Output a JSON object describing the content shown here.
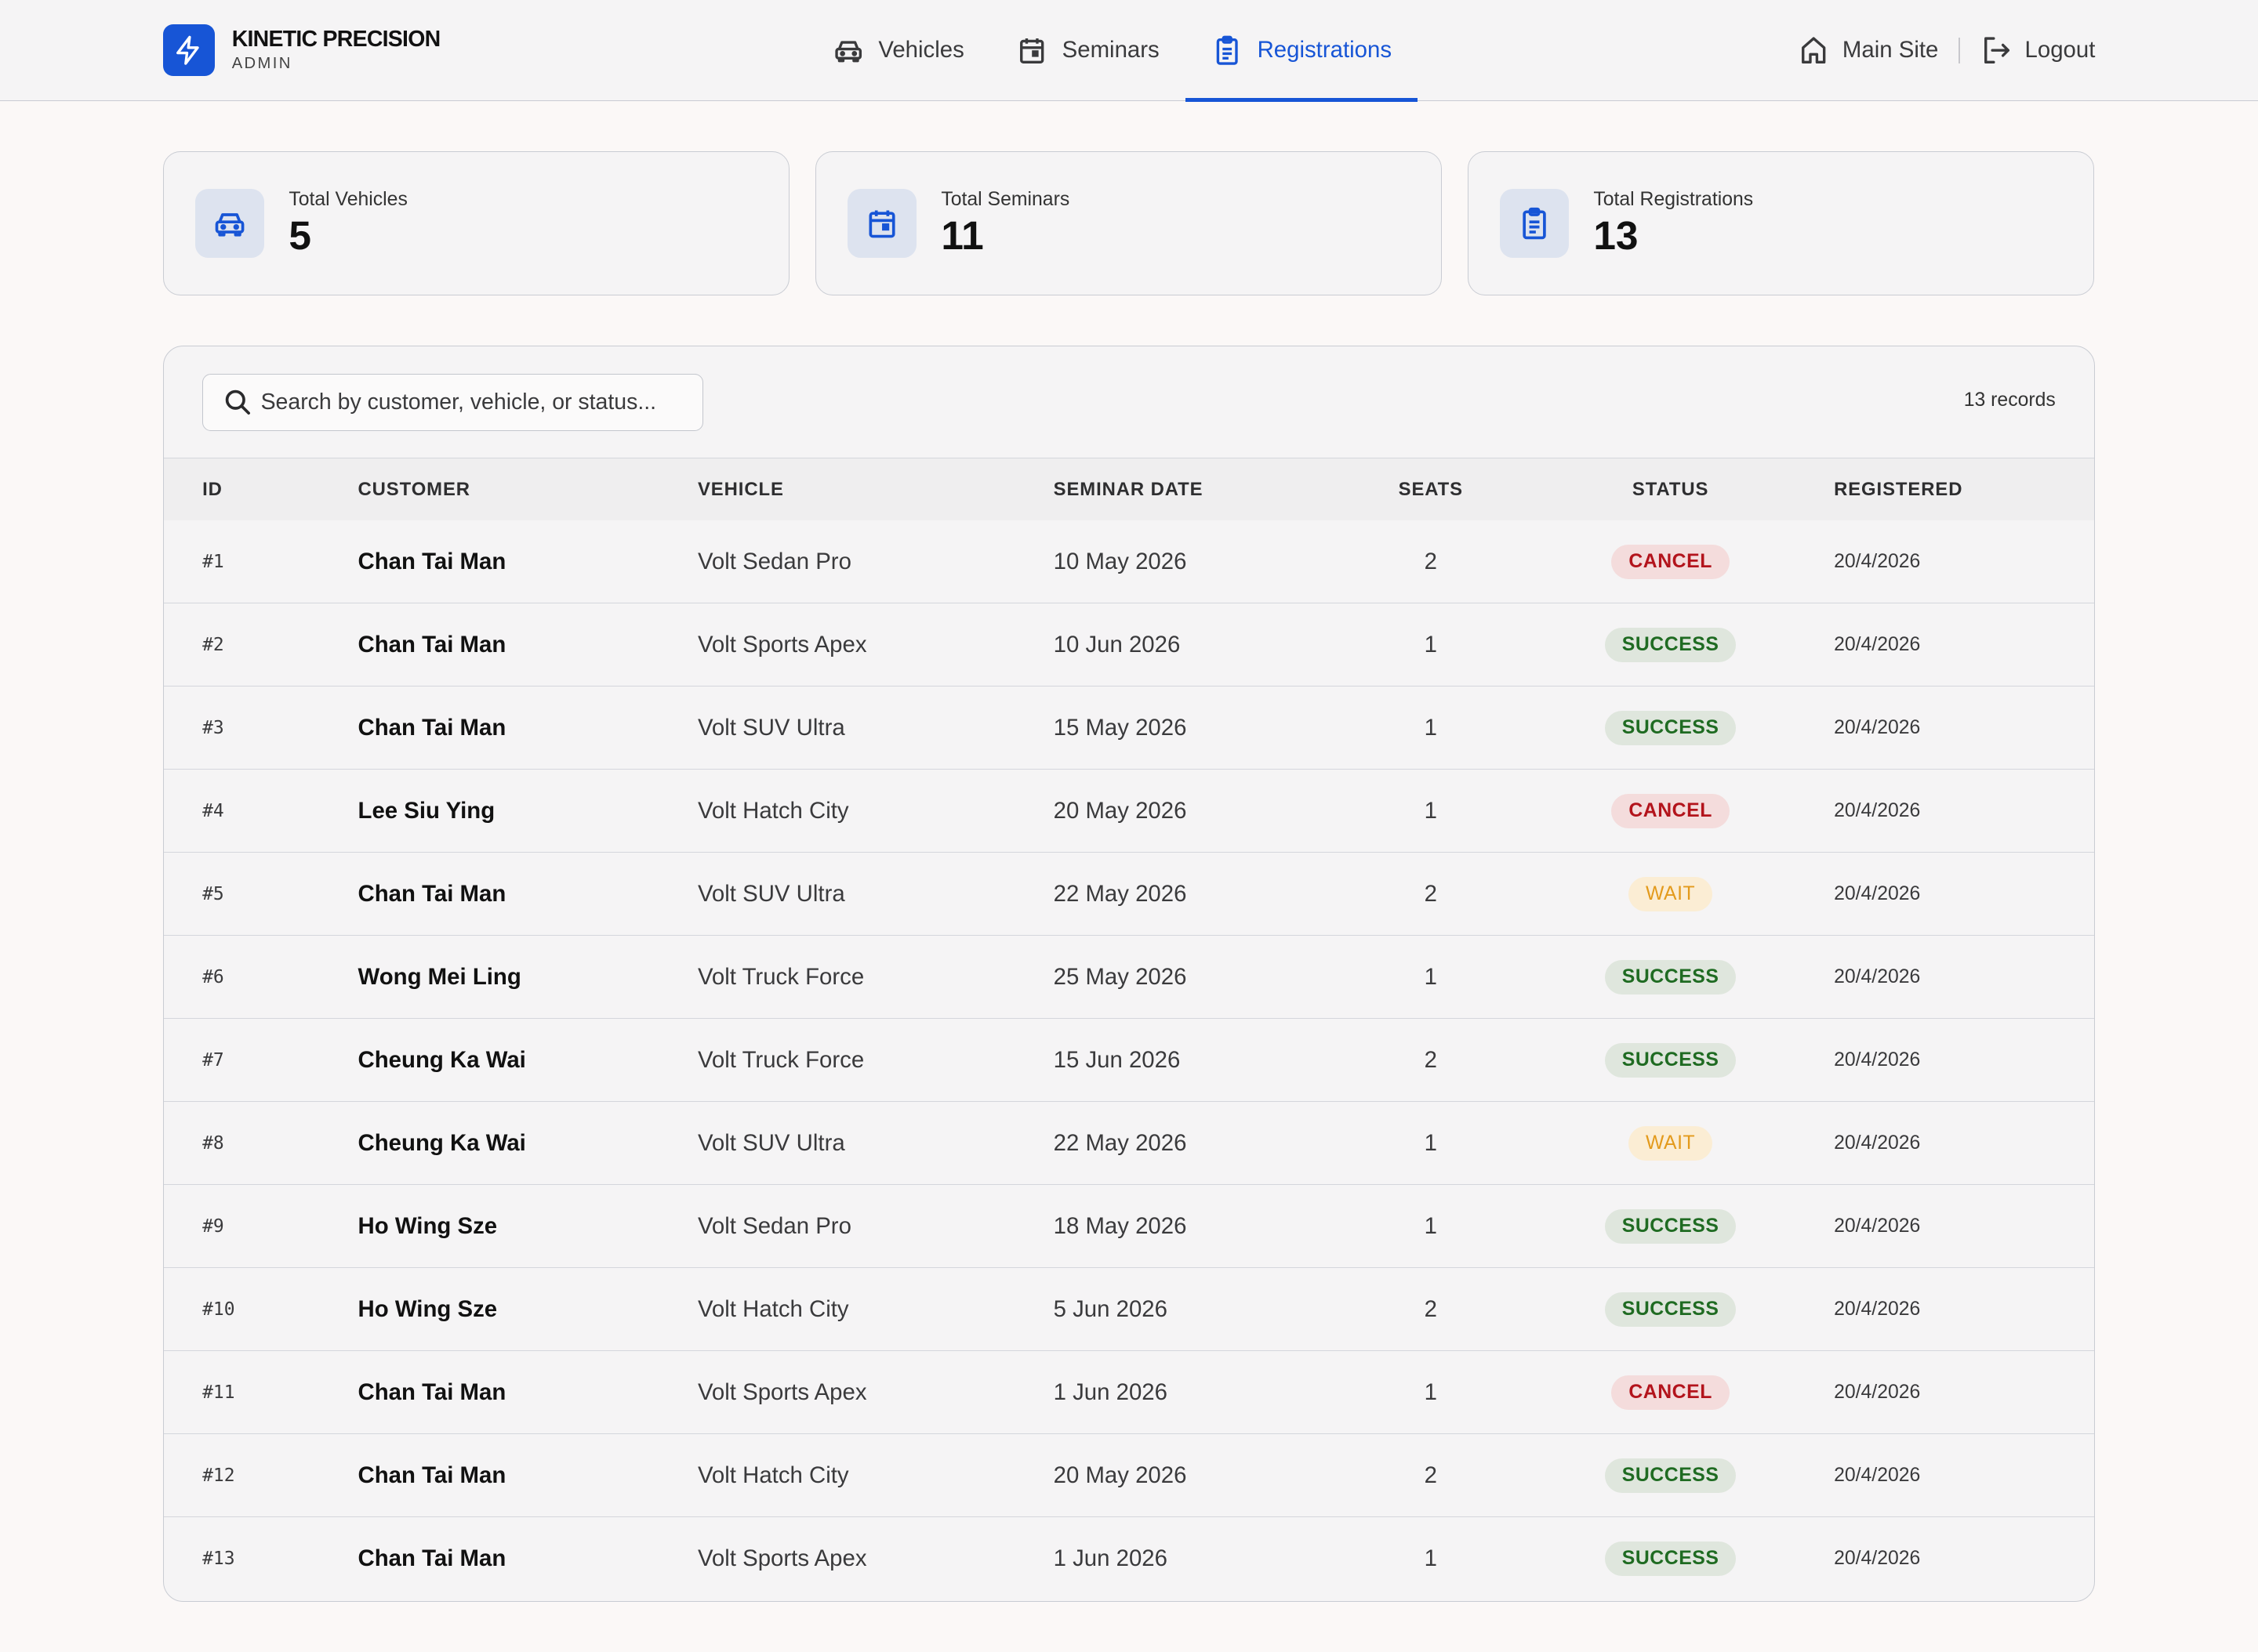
{
  "brand": {
    "name": "KINETIC PRECISION",
    "sub": "ADMIN"
  },
  "nav": [
    {
      "label": "Vehicles",
      "icon": "car-icon",
      "active": false
    },
    {
      "label": "Seminars",
      "icon": "calendar-icon",
      "active": false
    },
    {
      "label": "Registrations",
      "icon": "clipboard-icon",
      "active": true
    }
  ],
  "header_links": {
    "main_site": "Main Site",
    "logout": "Logout"
  },
  "stats": [
    {
      "label": "Total Vehicles",
      "value": "5",
      "icon": "car-icon"
    },
    {
      "label": "Total Seminars",
      "value": "11",
      "icon": "calendar-icon"
    },
    {
      "label": "Total Registrations",
      "value": "13",
      "icon": "clipboard-icon"
    }
  ],
  "search": {
    "placeholder": "Search by customer, vehicle, or status...",
    "value": ""
  },
  "record_count": "13 records",
  "table": {
    "columns": [
      "ID",
      "CUSTOMER",
      "VEHICLE",
      "SEMINAR DATE",
      "SEATS",
      "STATUS",
      "REGISTERED"
    ],
    "rows": [
      {
        "id": "#1",
        "customer": "Chan Tai Man",
        "vehicle": "Volt Sedan Pro",
        "date": "10 May 2026",
        "seats": "2",
        "status": "CANCEL",
        "registered": "20/4/2026"
      },
      {
        "id": "#2",
        "customer": "Chan Tai Man",
        "vehicle": "Volt Sports Apex",
        "date": "10 Jun 2026",
        "seats": "1",
        "status": "SUCCESS",
        "registered": "20/4/2026"
      },
      {
        "id": "#3",
        "customer": "Chan Tai Man",
        "vehicle": "Volt SUV Ultra",
        "date": "15 May 2026",
        "seats": "1",
        "status": "SUCCESS",
        "registered": "20/4/2026"
      },
      {
        "id": "#4",
        "customer": "Lee Siu Ying",
        "vehicle": "Volt Hatch City",
        "date": "20 May 2026",
        "seats": "1",
        "status": "CANCEL",
        "registered": "20/4/2026"
      },
      {
        "id": "#5",
        "customer": "Chan Tai Man",
        "vehicle": "Volt SUV Ultra",
        "date": "22 May 2026",
        "seats": "2",
        "status": "WAIT",
        "registered": "20/4/2026"
      },
      {
        "id": "#6",
        "customer": "Wong Mei Ling",
        "vehicle": "Volt Truck Force",
        "date": "25 May 2026",
        "seats": "1",
        "status": "SUCCESS",
        "registered": "20/4/2026"
      },
      {
        "id": "#7",
        "customer": "Cheung Ka Wai",
        "vehicle": "Volt Truck Force",
        "date": "15 Jun 2026",
        "seats": "2",
        "status": "SUCCESS",
        "registered": "20/4/2026"
      },
      {
        "id": "#8",
        "customer": "Cheung Ka Wai",
        "vehicle": "Volt SUV Ultra",
        "date": "22 May 2026",
        "seats": "1",
        "status": "WAIT",
        "registered": "20/4/2026"
      },
      {
        "id": "#9",
        "customer": "Ho Wing Sze",
        "vehicle": "Volt Sedan Pro",
        "date": "18 May 2026",
        "seats": "1",
        "status": "SUCCESS",
        "registered": "20/4/2026"
      },
      {
        "id": "#10",
        "customer": "Ho Wing Sze",
        "vehicle": "Volt Hatch City",
        "date": "5 Jun 2026",
        "seats": "2",
        "status": "SUCCESS",
        "registered": "20/4/2026"
      },
      {
        "id": "#11",
        "customer": "Chan Tai Man",
        "vehicle": "Volt Sports Apex",
        "date": "1 Jun 2026",
        "seats": "1",
        "status": "CANCEL",
        "registered": "20/4/2026"
      },
      {
        "id": "#12",
        "customer": "Chan Tai Man",
        "vehicle": "Volt Hatch City",
        "date": "20 May 2026",
        "seats": "2",
        "status": "SUCCESS",
        "registered": "20/4/2026"
      },
      {
        "id": "#13",
        "customer": "Chan Tai Man",
        "vehicle": "Volt Sports Apex",
        "date": "1 Jun 2026",
        "seats": "1",
        "status": "SUCCESS",
        "registered": "20/4/2026"
      }
    ]
  },
  "colors": {
    "accent": "#1755d6",
    "cancel": "#b3141c",
    "success": "#1f6b22",
    "wait": "#e39a1c"
  }
}
